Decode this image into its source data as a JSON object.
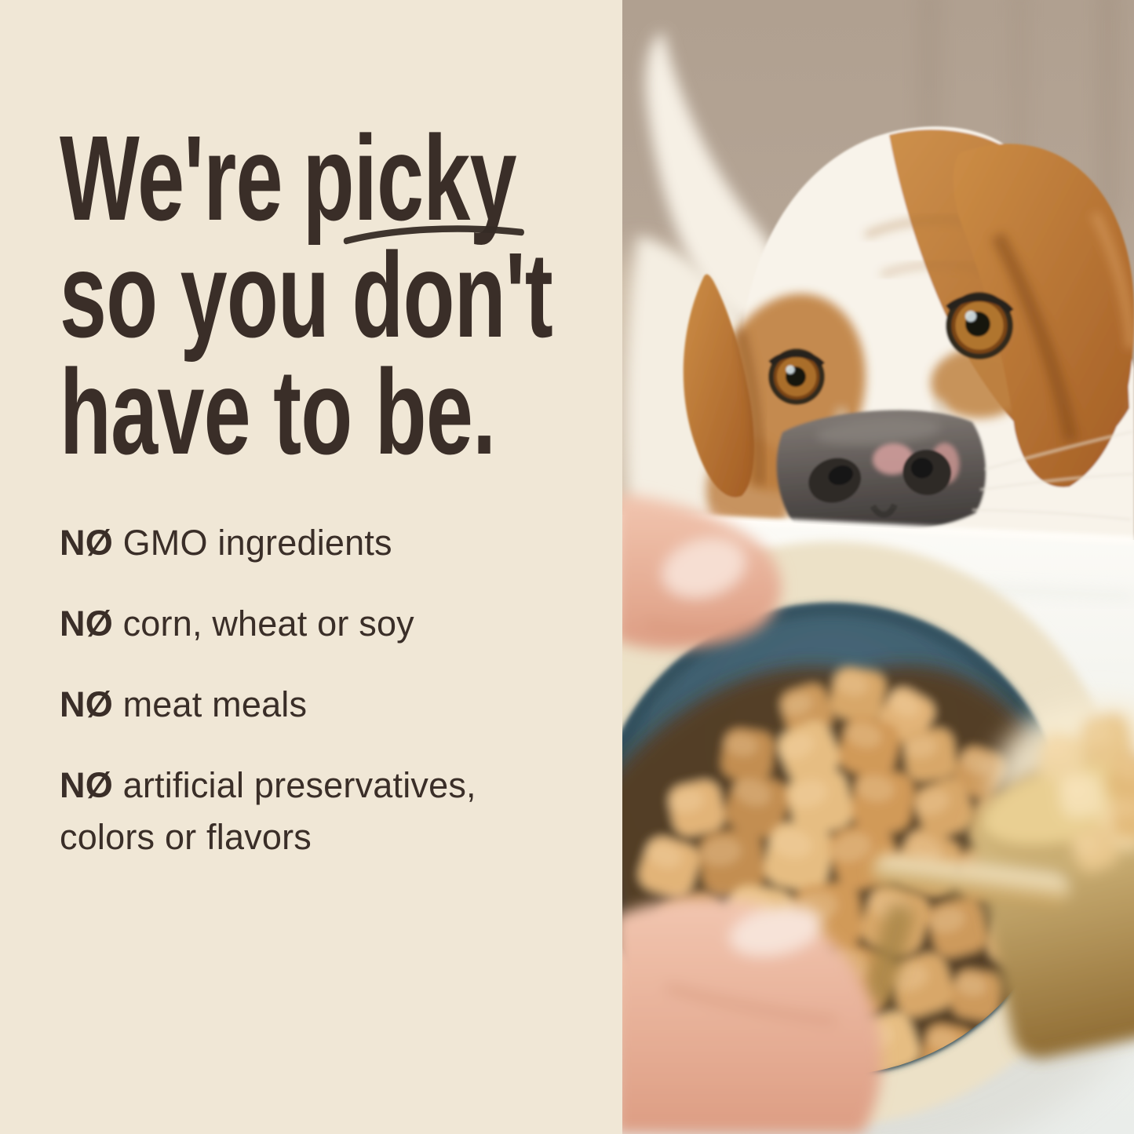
{
  "headline": {
    "line1_pre": "We're",
    "line1_word": "picky",
    "line2": "so you don't",
    "line3": "have to be."
  },
  "claims": [
    {
      "prefix": "NØ",
      "line1": "GMO ingredients"
    },
    {
      "prefix": "NØ",
      "line1": "corn, wheat or soy"
    },
    {
      "prefix": "NØ",
      "line1": "meat meals"
    },
    {
      "prefix": "NØ",
      "line1": "artificial preservatives,",
      "line2": "colors or flavors"
    }
  ],
  "colors": {
    "panel_background": "#f0e7d6",
    "text": "#3a2e28",
    "wall_taupe": "#b6a697",
    "dog_fur_white": "#f8f3ea",
    "dog_fur_tan": "#bd7b3e",
    "dog_nose_gray": "#5d5754",
    "table_white": "#f4f4f0",
    "bowl_rim_cream": "#ece1c7",
    "bowl_teal": "#3a5866",
    "kibble_tan": "#d3a268",
    "hand_skin": "#eab79f",
    "scoop_gold": "#cfa95f"
  }
}
